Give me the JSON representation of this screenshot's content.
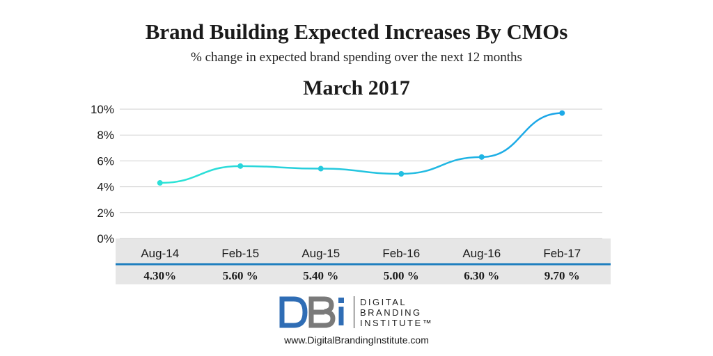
{
  "title": "Brand Building Expected Increases By CMOs",
  "subtitle": "% change in expected brand spending over the next 12 months",
  "period": "March 2017",
  "chart_data": {
    "type": "line",
    "categories": [
      "Aug-14",
      "Feb-15",
      "Aug-15",
      "Feb-16",
      "Aug-16",
      "Feb-17"
    ],
    "values": [
      4.3,
      5.6,
      5.4,
      5.0,
      6.3,
      9.7
    ],
    "value_labels": [
      "4.30%",
      "5.60 %",
      "5.40 %",
      "5.00 %",
      "6.30 %",
      "9.70 %"
    ],
    "yticks": [
      "0%",
      "2%",
      "4%",
      "6%",
      "8%",
      "10%"
    ],
    "ylim": [
      0,
      10
    ],
    "grid": true,
    "colors": {
      "line_start": "#2ee6d6",
      "line_end": "#1aa3e8",
      "table_rule": "#1f7fbf",
      "table_bg": "#e6e6e6",
      "grid": "#cfcfcf"
    }
  },
  "logo": {
    "mark": "DBI",
    "lines": [
      "DIGITAL",
      "BRANDING",
      "INSTITUTE™"
    ],
    "colors": {
      "mark_blue": "#2f6db5",
      "mark_gray": "#7a7a7a"
    }
  },
  "url": "www.DigitalBrandingInstitute.com"
}
